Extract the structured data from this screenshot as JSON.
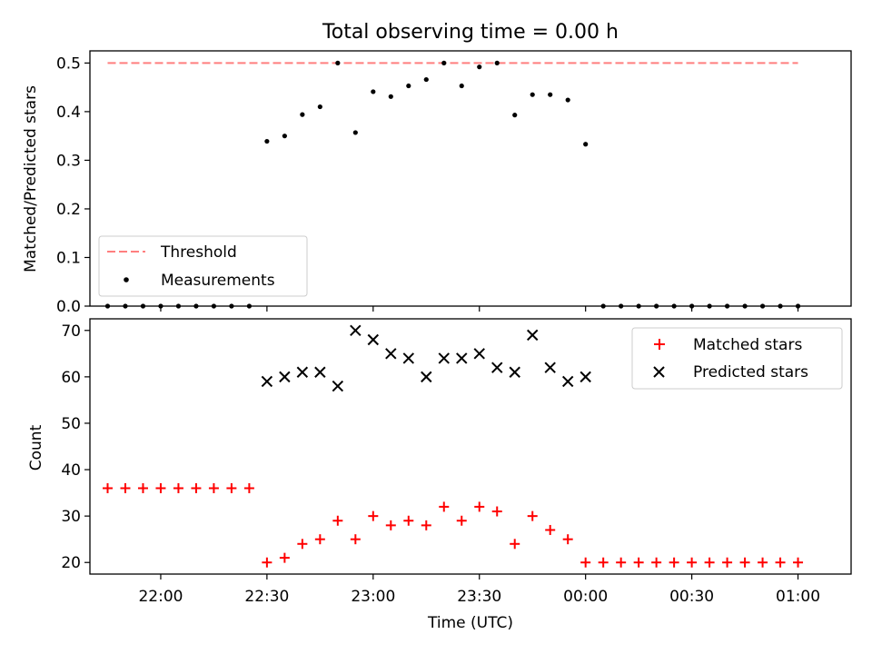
{
  "chart_data": [
    {
      "type": "scatter",
      "title": "Total observing time = 0.00 h",
      "xlabel": "",
      "ylabel": "Matched/Predicted stars",
      "ylim": [
        0,
        0.525
      ],
      "yticks": [
        0.0,
        0.1,
        0.2,
        0.3,
        0.4,
        0.5
      ],
      "ytick_labels": [
        "0.0",
        "0.1",
        "0.2",
        "0.3",
        "0.4",
        "0.5"
      ],
      "xlim": [
        "21:40",
        "01:15"
      ],
      "grid": false,
      "legend_position": "lower-left",
      "threshold": {
        "name": "Threshold",
        "value": 0.5,
        "x_range": [
          "21:45",
          "01:00"
        ],
        "color": "#ff7f7f"
      },
      "series": [
        {
          "name": "Measurements",
          "color": "#000000",
          "x": [
            "21:45",
            "21:50",
            "21:55",
            "22:00",
            "22:05",
            "22:10",
            "22:15",
            "22:20",
            "22:25",
            "22:30",
            "22:35",
            "22:40",
            "22:45",
            "22:50",
            "22:55",
            "23:00",
            "23:05",
            "23:10",
            "23:15",
            "23:20",
            "23:25",
            "23:30",
            "23:35",
            "23:40",
            "23:45",
            "23:50",
            "23:55",
            "00:00",
            "00:05",
            "00:10",
            "00:15",
            "00:20",
            "00:25",
            "00:30",
            "00:35",
            "00:40",
            "00:45",
            "00:50",
            "00:55",
            "01:00"
          ],
          "y": [
            0,
            0,
            0,
            0,
            0,
            0,
            0,
            0,
            0,
            0.339,
            0.35,
            0.394,
            0.41,
            0.5,
            0.357,
            0.441,
            0.431,
            0.453,
            0.466,
            0.5,
            0.453,
            0.492,
            0.5,
            0.393,
            0.435,
            0.435,
            0.424,
            0.333,
            0,
            0,
            0,
            0,
            0,
            0,
            0,
            0,
            0,
            0,
            0,
            0
          ]
        }
      ]
    },
    {
      "type": "scatter",
      "title": "",
      "xlabel": "Time (UTC)",
      "ylabel": "Count",
      "ylim": [
        17.5,
        72.5
      ],
      "yticks": [
        20,
        30,
        40,
        50,
        60,
        70
      ],
      "ytick_labels": [
        "20",
        "30",
        "40",
        "50",
        "60",
        "70"
      ],
      "xlim": [
        "21:40",
        "01:15"
      ],
      "xticks": [
        "22:00",
        "22:30",
        "23:00",
        "23:30",
        "00:00",
        "00:30",
        "01:00"
      ],
      "grid": false,
      "legend_position": "top-right",
      "series": [
        {
          "name": "Matched stars",
          "marker": "plus",
          "color": "#ff0000",
          "x": [
            "21:45",
            "21:50",
            "21:55",
            "22:00",
            "22:05",
            "22:10",
            "22:15",
            "22:20",
            "22:25",
            "22:30",
            "22:35",
            "22:40",
            "22:45",
            "22:50",
            "22:55",
            "23:00",
            "23:05",
            "23:10",
            "23:15",
            "23:20",
            "23:25",
            "23:30",
            "23:35",
            "23:40",
            "23:45",
            "23:50",
            "23:55",
            "00:00",
            "00:05",
            "00:10",
            "00:15",
            "00:20",
            "00:25",
            "00:30",
            "00:35",
            "00:40",
            "00:45",
            "00:50",
            "00:55",
            "01:00"
          ],
          "y": [
            36,
            36,
            36,
            36,
            36,
            36,
            36,
            36,
            36,
            20,
            21,
            24,
            25,
            29,
            25,
            30,
            28,
            29,
            28,
            32,
            29,
            32,
            31,
            24,
            30,
            27,
            25,
            20,
            20,
            20,
            20,
            20,
            20,
            20,
            20,
            20,
            20,
            20,
            20,
            20
          ]
        },
        {
          "name": "Predicted stars",
          "marker": "x",
          "color": "#000000",
          "x": [
            "22:30",
            "22:35",
            "22:40",
            "22:45",
            "22:50",
            "22:55",
            "23:00",
            "23:05",
            "23:10",
            "23:15",
            "23:20",
            "23:25",
            "23:30",
            "23:35",
            "23:40",
            "23:45",
            "23:50",
            "23:55",
            "00:00"
          ],
          "y": [
            59,
            60,
            61,
            61,
            58,
            70,
            68,
            65,
            64,
            60,
            64,
            64,
            65,
            62,
            61,
            69,
            62,
            59,
            60
          ]
        }
      ]
    }
  ]
}
